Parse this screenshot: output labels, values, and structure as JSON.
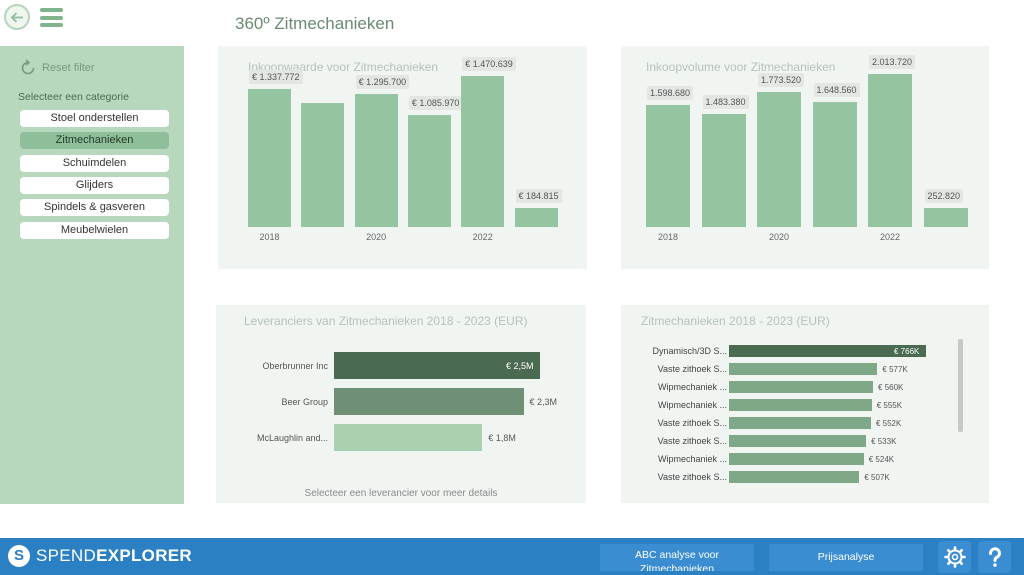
{
  "header": {
    "title": "360º Zitmechanieken"
  },
  "sidebar": {
    "reset_label": "Reset filter",
    "category_label": "Selecteer een categorie",
    "categories": [
      {
        "label": "Stoel onderstellen",
        "active": false
      },
      {
        "label": "Zitmechanieken",
        "active": true
      },
      {
        "label": "Schuimdelen",
        "active": false
      },
      {
        "label": "Glijders",
        "active": false
      },
      {
        "label": "Spindels & gasveren",
        "active": false
      },
      {
        "label": "Meubelwielen",
        "active": false
      }
    ]
  },
  "chart_data": [
    {
      "type": "bar",
      "title": "Inkoopwaarde voor Zitmechanieken",
      "categories": [
        "2018",
        "2019",
        "2020",
        "2021",
        "2022",
        "2023"
      ],
      "values": [
        1337772,
        1200000,
        1295700,
        1085970,
        1470639,
        184815
      ],
      "data_labels": [
        "€ 1.337.772",
        "",
        "€ 1.295.700",
        "€ 1.085.970",
        "€ 1.470.639",
        "€ 184.815"
      ],
      "tick_labels": [
        "2018",
        "",
        "2020",
        "",
        "2022",
        ""
      ],
      "ylim": [
        0,
        1700000
      ],
      "color": "#95c4a0"
    },
    {
      "type": "bar",
      "title": "Inkoopvolume voor Zitmechanieken",
      "categories": [
        "2018",
        "2019",
        "2020",
        "2021",
        "2022",
        "2023"
      ],
      "values": [
        1598680,
        1483380,
        1773520,
        1648560,
        2013720,
        252820
      ],
      "data_labels": [
        "1.598.680",
        "1.483.380",
        "1.773.520",
        "1.648.560",
        "2.013.720",
        "252.820"
      ],
      "tick_labels": [
        "2018",
        "",
        "2020",
        "",
        "2022",
        ""
      ],
      "ylim": [
        0,
        2300000
      ],
      "color": "#95c4a0"
    },
    {
      "type": "bar",
      "orientation": "horizontal",
      "title": "Leveranciers van Zitmechanieken 2018 - 2023 (EUR)",
      "categories": [
        "Oberbrunner Inc",
        "Beer Group",
        "McLaughlin and..."
      ],
      "values": [
        2.5,
        2.3,
        1.8
      ],
      "data_labels": [
        "€ 2,5M",
        "€ 2,3M",
        "€ 1,8M"
      ],
      "colors": [
        "#4a6a52",
        "#6f8f77",
        "#a9d0b1"
      ],
      "xlim": [
        0,
        2.5
      ]
    },
    {
      "type": "bar",
      "orientation": "horizontal",
      "title": "Zitmechanieken 2018 - 2023 (EUR)",
      "categories": [
        "Dynamisch/3D S...",
        "Vaste zithoek S...",
        "Wipmechaniek ...",
        "Wipmechaniek ...",
        "Vaste zithoek S...",
        "Vaste zithoek S...",
        "Wipmechaniek ...",
        "Vaste zithoek S..."
      ],
      "values": [
        766,
        577,
        560,
        555,
        552,
        533,
        524,
        507
      ],
      "data_labels": [
        "€ 766K",
        "€ 577K",
        "€ 560K",
        "€ 555K",
        "€ 552K",
        "€ 533K",
        "€ 524K",
        "€ 507K"
      ],
      "xlim": [
        0,
        766
      ]
    }
  ],
  "supplier_hint": "Selecteer een leverancier voor meer details",
  "footer": {
    "brand_light": "SPEND",
    "brand_bold": "EXPLORER",
    "abc_label": "ABC analyse voor Zitmechanieken",
    "price_label": "Prijsanalyse"
  },
  "colors": {
    "accent": "#95c4a0",
    "sidebar": "#b7d8bd",
    "footer": "#2a80c3"
  }
}
